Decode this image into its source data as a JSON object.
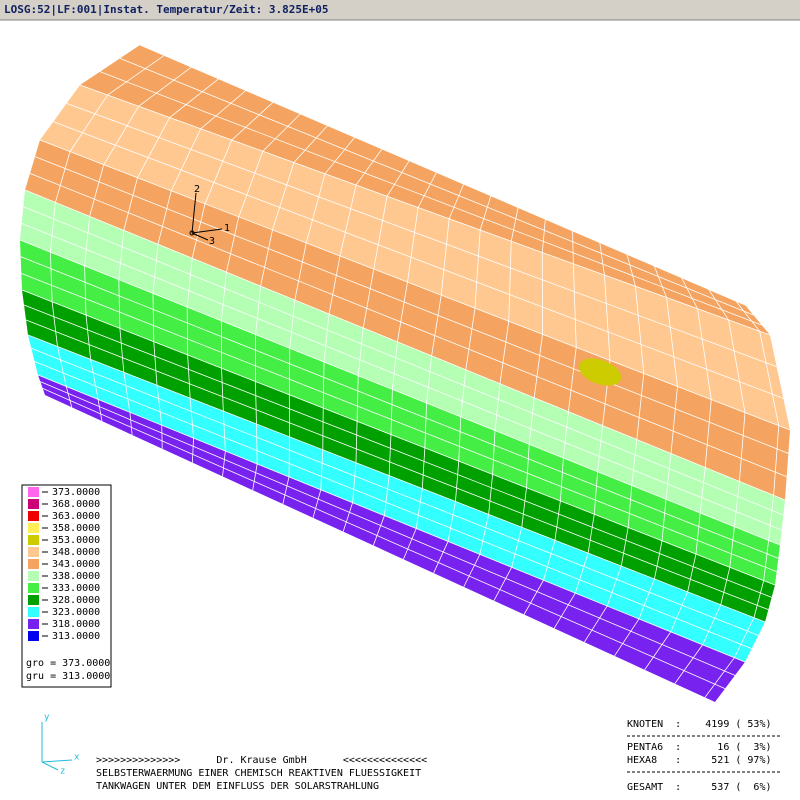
{
  "header": {
    "title": "LOSG:52|LF:001|Instat. Temperatur/Zeit: 3.825E+05"
  },
  "triad": [
    "1",
    "2",
    "3"
  ],
  "axis_icon": [
    "y",
    "x",
    "z"
  ],
  "legend": {
    "entries": [
      {
        "label": "373.0000",
        "color": "#ff66ee"
      },
      {
        "label": "368.0000",
        "color": "#cc0077"
      },
      {
        "label": "363.0000",
        "color": "#ee0000"
      },
      {
        "label": "358.0000",
        "color": "#ffee55"
      },
      {
        "label": "353.0000",
        "color": "#cccc00"
      },
      {
        "label": "348.0000",
        "color": "#ffc890"
      },
      {
        "label": "343.0000",
        "color": "#f4a460"
      },
      {
        "label": "338.0000",
        "color": "#b4ffb4"
      },
      {
        "label": "333.0000",
        "color": "#44ee44"
      },
      {
        "label": "328.0000",
        "color": "#00a000"
      },
      {
        "label": "323.0000",
        "color": "#33ffff"
      },
      {
        "label": "318.0000",
        "color": "#7722ee"
      },
      {
        "label": "313.0000",
        "color": "#0000ee"
      }
    ],
    "gro": "gro = 373.0000",
    "gru": "gru = 313.0000"
  },
  "footer": [
    ">>>>>>>>>>>>>>      Dr. Krause GmbH      <<<<<<<<<<<<<<",
    "SELBSTERWAERMUNG EINER CHEMISCH REAKTIVEN FLUESSIGKEIT",
    "TANKWAGEN UNTER DEM EINFLUSS DER SOLARSTRAHLUNG"
  ],
  "stats": [
    "KNOTEN  :    4199 ( 53%)",
    "PENTA6  :      16 (  3%)",
    "HEXA8   :     521 ( 97%)",
    "GESAMT  :     537 (  6%)"
  ]
}
